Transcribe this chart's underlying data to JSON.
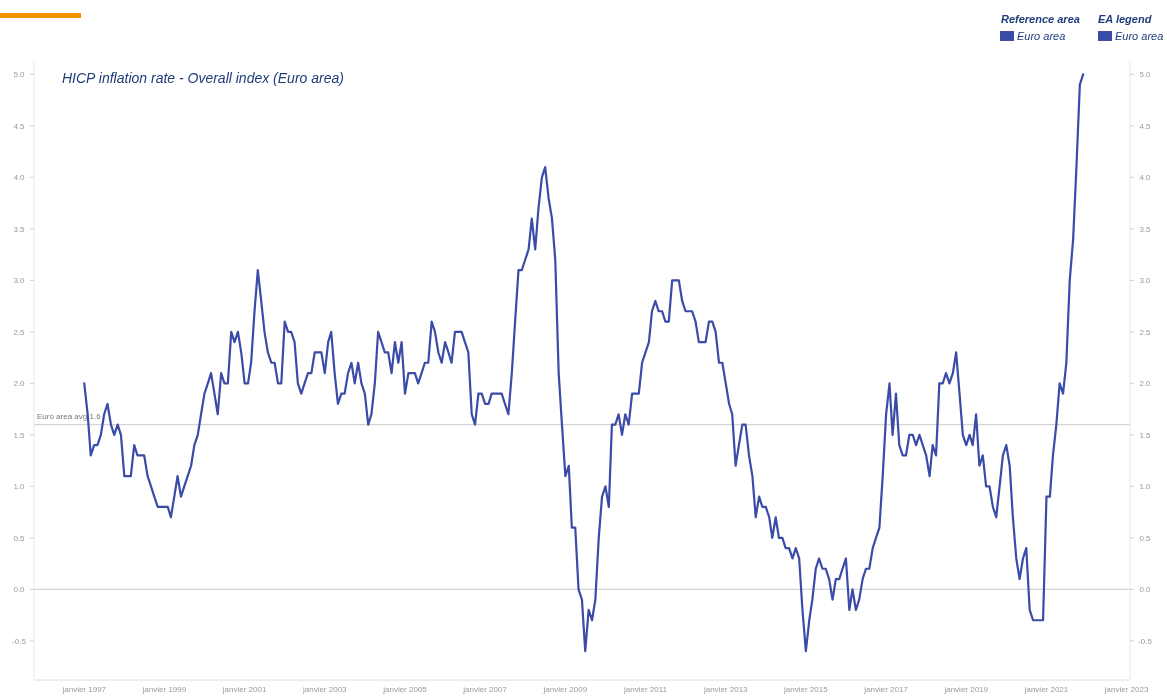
{
  "chart_data": {
    "type": "line",
    "title": "HICP inflation rate - Overall index (Euro area)",
    "annotations": [
      "Reference area",
      "Euro area"
    ],
    "legend": "top right",
    "legend_title": "EA legend",
    "xlim": [
      "1995-10",
      "2023-02"
    ],
    "xticks": [
      {
        "value": "1997-01",
        "label": "janvier 1997"
      },
      {
        "value": "1999-01",
        "label": "janvier 1999"
      },
      {
        "value": "2001-01",
        "label": "janvier 2001"
      },
      {
        "value": "2003-01",
        "label": "janvier 2003"
      },
      {
        "value": "2005-01",
        "label": "janvier 2005"
      },
      {
        "value": "2007-01",
        "label": "janvier 2007"
      },
      {
        "value": "2009-01",
        "label": "janvier 2009"
      },
      {
        "value": "2011-01",
        "label": "janvier 2011"
      },
      {
        "value": "2013-01",
        "label": "janvier 2013"
      },
      {
        "value": "2015-01",
        "label": "janvier 2015"
      },
      {
        "value": "2017-01",
        "label": "janvier 2017"
      },
      {
        "value": "2019-01",
        "label": "janvier 2019"
      },
      {
        "value": "2021-01",
        "label": "janvier 2021"
      },
      {
        "value": "2023-01",
        "label": "janvier 2023"
      }
    ],
    "ylim": [
      -0.88,
      5.12
    ],
    "yticks": [
      {
        "value": -0.5,
        "label": "-0.5"
      },
      {
        "value": 0,
        "label": "0.0"
      },
      {
        "value": 0.5,
        "label": "0.5"
      },
      {
        "value": 1,
        "label": "1.0"
      },
      {
        "value": 1.5,
        "label": "1.5"
      },
      {
        "value": 2,
        "label": "2.0"
      },
      {
        "value": 2.5,
        "label": "2.5"
      },
      {
        "value": 3,
        "label": "3.0"
      },
      {
        "value": 3.5,
        "label": "3.5"
      },
      {
        "value": 4,
        "label": "4.0"
      },
      {
        "value": 4.5,
        "label": "4.5"
      },
      {
        "value": 5,
        "label": "5.0"
      }
    ],
    "y2lim": [
      -0.88,
      5.12
    ],
    "y2ticks": [
      {
        "value": -0.5,
        "label": "-0.5"
      },
      {
        "value": 0,
        "label": "0.0"
      },
      {
        "value": 0.5,
        "label": "0.5"
      },
      {
        "value": 1,
        "label": "1.0"
      },
      {
        "value": 1.5,
        "label": "1.5"
      },
      {
        "value": 2,
        "label": "2.0"
      },
      {
        "value": 2.5,
        "label": "2.5"
      },
      {
        "value": 3,
        "label": "3.0"
      },
      {
        "value": 3.5,
        "label": "3.5"
      },
      {
        "value": 4,
        "label": "4.0"
      },
      {
        "value": 4.5,
        "label": "4.5"
      },
      {
        "value": 5,
        "label": "5.0"
      }
    ],
    "ref_lines": [
      {
        "axis": "y",
        "value": 0,
        "color": "#d4d4d4"
      },
      {
        "axis": "y",
        "value": 1.6,
        "label": "Euro area avg 1.6",
        "color": "#d4d4d4"
      }
    ],
    "x": [
      "1997-01",
      "1997-02",
      "1997-03",
      "1997-04",
      "1997-05",
      "1997-06",
      "1997-07",
      "1997-08",
      "1997-09",
      "1997-10",
      "1997-11",
      "1997-12",
      "1998-01",
      "1998-02",
      "1998-03",
      "1998-04",
      "1998-05",
      "1998-06",
      "1998-07",
      "1998-08",
      "1998-09",
      "1998-10",
      "1998-11",
      "1998-12",
      "1999-01",
      "1999-02",
      "1999-03",
      "1999-04",
      "1999-05",
      "1999-06",
      "1999-07",
      "1999-08",
      "1999-09",
      "1999-10",
      "1999-11",
      "1999-12",
      "2000-01",
      "2000-02",
      "2000-03",
      "2000-04",
      "2000-05",
      "2000-06",
      "2000-07",
      "2000-08",
      "2000-09",
      "2000-10",
      "2000-11",
      "2000-12",
      "2001-01",
      "2001-02",
      "2001-03",
      "2001-04",
      "2001-05",
      "2001-06",
      "2001-07",
      "2001-08",
      "2001-09",
      "2001-10",
      "2001-11",
      "2001-12",
      "2002-01",
      "2002-02",
      "2002-03",
      "2002-04",
      "2002-05",
      "2002-06",
      "2002-07",
      "2002-08",
      "2002-09",
      "2002-10",
      "2002-11",
      "2002-12",
      "2003-01",
      "2003-02",
      "2003-03",
      "2003-04",
      "2003-05",
      "2003-06",
      "2003-07",
      "2003-08",
      "2003-09",
      "2003-10",
      "2003-11",
      "2003-12",
      "2004-01",
      "2004-02",
      "2004-03",
      "2004-04",
      "2004-05",
      "2004-06",
      "2004-07",
      "2004-08",
      "2004-09",
      "2004-10",
      "2004-11",
      "2004-12",
      "2005-01",
      "2005-02",
      "2005-03",
      "2005-04",
      "2005-05",
      "2005-06",
      "2005-07",
      "2005-08",
      "2005-09",
      "2005-10",
      "2005-11",
      "2005-12",
      "2006-01",
      "2006-02",
      "2006-03",
      "2006-04",
      "2006-05",
      "2006-06",
      "2006-07",
      "2006-08",
      "2006-09",
      "2006-10",
      "2006-11",
      "2006-12",
      "2007-01",
      "2007-02",
      "2007-03",
      "2007-04",
      "2007-05",
      "2007-06",
      "2007-07",
      "2007-08",
      "2007-09",
      "2007-10",
      "2007-11",
      "2007-12",
      "2008-01",
      "2008-02",
      "2008-03",
      "2008-04",
      "2008-05",
      "2008-06",
      "2008-07",
      "2008-08",
      "2008-09",
      "2008-10",
      "2008-11",
      "2008-12",
      "2009-01",
      "2009-02",
      "2009-03",
      "2009-04",
      "2009-05",
      "2009-06",
      "2009-07",
      "2009-08",
      "2009-09",
      "2009-10",
      "2009-11",
      "2009-12",
      "2010-01",
      "2010-02",
      "2010-03",
      "2010-04",
      "2010-05",
      "2010-06",
      "2010-07",
      "2010-08",
      "2010-09",
      "2010-10",
      "2010-11",
      "2010-12",
      "2011-01",
      "2011-02",
      "2011-03",
      "2011-04",
      "2011-05",
      "2011-06",
      "2011-07",
      "2011-08",
      "2011-09",
      "2011-10",
      "2011-11",
      "2011-12",
      "2012-01",
      "2012-02",
      "2012-03",
      "2012-04",
      "2012-05",
      "2012-06",
      "2012-07",
      "2012-08",
      "2012-09",
      "2012-10",
      "2012-11",
      "2012-12",
      "2013-01",
      "2013-02",
      "2013-03",
      "2013-04",
      "2013-05",
      "2013-06",
      "2013-07",
      "2013-08",
      "2013-09",
      "2013-10",
      "2013-11",
      "2013-12",
      "2014-01",
      "2014-02",
      "2014-03",
      "2014-04",
      "2014-05",
      "2014-06",
      "2014-07",
      "2014-08",
      "2014-09",
      "2014-10",
      "2014-11",
      "2014-12",
      "2015-01",
      "2015-02",
      "2015-03",
      "2015-04",
      "2015-05",
      "2015-06",
      "2015-07",
      "2015-08",
      "2015-09",
      "2015-10",
      "2015-11",
      "2015-12",
      "2016-01",
      "2016-02",
      "2016-03",
      "2016-04",
      "2016-05",
      "2016-06",
      "2016-07",
      "2016-08",
      "2016-09",
      "2016-10",
      "2016-11",
      "2016-12",
      "2017-01",
      "2017-02",
      "2017-03",
      "2017-04",
      "2017-05",
      "2017-06",
      "2017-07",
      "2017-08",
      "2017-09",
      "2017-10",
      "2017-11",
      "2017-12",
      "2018-01",
      "2018-02",
      "2018-03",
      "2018-04",
      "2018-05",
      "2018-06",
      "2018-07",
      "2018-08",
      "2018-09",
      "2018-10",
      "2018-11",
      "2018-12",
      "2019-01",
      "2019-02",
      "2019-03",
      "2019-04",
      "2019-05",
      "2019-06",
      "2019-07",
      "2019-08",
      "2019-09",
      "2019-10",
      "2019-11",
      "2019-12",
      "2020-01",
      "2020-02",
      "2020-03",
      "2020-04",
      "2020-05",
      "2020-06",
      "2020-07",
      "2020-08",
      "2020-09",
      "2020-10",
      "2020-11",
      "2020-12",
      "2021-01",
      "2021-02",
      "2021-03",
      "2021-04",
      "2021-05",
      "2021-06",
      "2021-07",
      "2021-08",
      "2021-09",
      "2021-10",
      "2021-11",
      "2021-12"
    ],
    "series": [
      {
        "name": "Euro area",
        "color": "#3b4ba8",
        "values": [
          2.0,
          1.7,
          1.3,
          1.4,
          1.4,
          1.5,
          1.7,
          1.8,
          1.6,
          1.5,
          1.6,
          1.5,
          1.1,
          1.1,
          1.1,
          1.4,
          1.3,
          1.3,
          1.3,
          1.1,
          1.0,
          0.9,
          0.8,
          0.8,
          0.8,
          0.8,
          0.7,
          0.9,
          1.1,
          0.9,
          1.0,
          1.1,
          1.2,
          1.4,
          1.5,
          1.7,
          1.9,
          2.0,
          2.1,
          1.9,
          1.7,
          2.1,
          2.0,
          2.0,
          2.5,
          2.4,
          2.5,
          2.3,
          2.0,
          2.0,
          2.2,
          2.7,
          3.1,
          2.8,
          2.5,
          2.3,
          2.2,
          2.2,
          2.0,
          2.0,
          2.6,
          2.5,
          2.5,
          2.4,
          2.0,
          1.9,
          2.0,
          2.1,
          2.1,
          2.3,
          2.3,
          2.3,
          2.1,
          2.4,
          2.5,
          2.1,
          1.8,
          1.9,
          1.9,
          2.1,
          2.2,
          2.0,
          2.2,
          2.0,
          1.9,
          1.6,
          1.7,
          2.0,
          2.5,
          2.4,
          2.3,
          2.3,
          2.1,
          2.4,
          2.2,
          2.4,
          1.9,
          2.1,
          2.1,
          2.1,
          2.0,
          2.1,
          2.2,
          2.2,
          2.6,
          2.5,
          2.3,
          2.2,
          2.4,
          2.3,
          2.2,
          2.5,
          2.5,
          2.5,
          2.4,
          2.3,
          1.7,
          1.6,
          1.9,
          1.9,
          1.8,
          1.8,
          1.9,
          1.9,
          1.9,
          1.9,
          1.8,
          1.7,
          2.1,
          2.6,
          3.1,
          3.1,
          3.2,
          3.3,
          3.6,
          3.3,
          3.7,
          4.0,
          4.1,
          3.8,
          3.6,
          3.2,
          2.1,
          1.6,
          1.1,
          1.2,
          0.6,
          0.6,
          0.0,
          -0.1,
          -0.6,
          -0.2,
          -0.3,
          -0.1,
          0.5,
          0.9,
          1.0,
          0.8,
          1.6,
          1.6,
          1.7,
          1.5,
          1.7,
          1.6,
          1.9,
          1.9,
          1.9,
          2.2,
          2.3,
          2.4,
          2.7,
          2.8,
          2.7,
          2.7,
          2.6,
          2.6,
          3.0,
          3.0,
          3.0,
          2.8,
          2.7,
          2.7,
          2.7,
          2.6,
          2.4,
          2.4,
          2.4,
          2.6,
          2.6,
          2.5,
          2.2,
          2.2,
          2.0,
          1.8,
          1.7,
          1.2,
          1.4,
          1.6,
          1.6,
          1.3,
          1.1,
          0.7,
          0.9,
          0.8,
          0.8,
          0.7,
          0.5,
          0.7,
          0.5,
          0.5,
          0.4,
          0.4,
          0.3,
          0.4,
          0.3,
          -0.2,
          -0.6,
          -0.3,
          -0.1,
          0.2,
          0.3,
          0.2,
          0.2,
          0.1,
          -0.1,
          0.1,
          0.1,
          0.2,
          0.3,
          -0.2,
          0.0,
          -0.2,
          -0.1,
          0.1,
          0.2,
          0.2,
          0.4,
          0.5,
          0.6,
          1.1,
          1.7,
          2.0,
          1.5,
          1.9,
          1.4,
          1.3,
          1.3,
          1.5,
          1.5,
          1.4,
          1.5,
          1.4,
          1.3,
          1.1,
          1.4,
          1.3,
          2.0,
          2.0,
          2.1,
          2.0,
          2.1,
          2.3,
          1.9,
          1.5,
          1.4,
          1.5,
          1.4,
          1.7,
          1.2,
          1.3,
          1.0,
          1.0,
          0.8,
          0.7,
          1.0,
          1.3,
          1.4,
          1.2,
          0.7,
          0.3,
          0.1,
          0.3,
          0.4,
          -0.2,
          -0.3,
          -0.3,
          -0.3,
          -0.3,
          0.9,
          0.9,
          1.3,
          1.6,
          2.0,
          1.9,
          2.2,
          3.0,
          3.4,
          4.1,
          4.9,
          5.0
        ]
      }
    ]
  }
}
